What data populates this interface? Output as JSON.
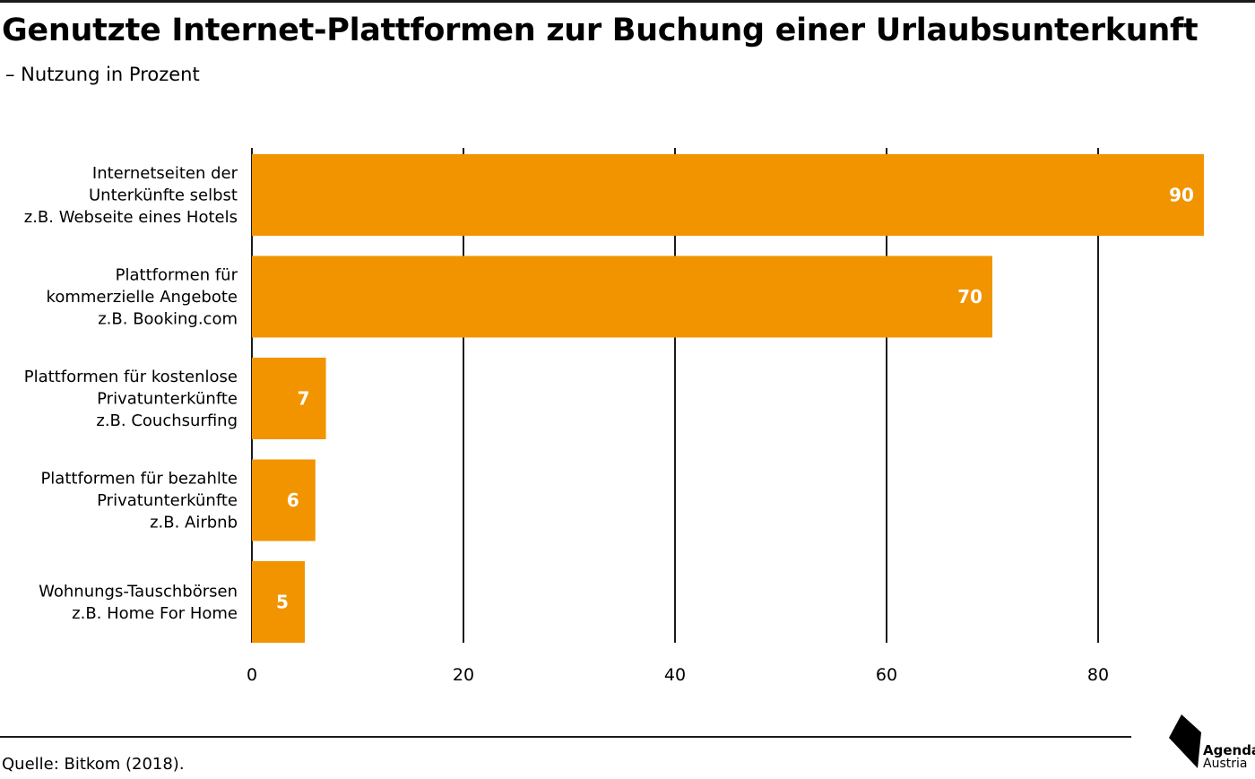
{
  "title": "Genutzte Internet-Plattformen zur Buchung einer Urlaubsunterkunft",
  "subtitle": "– Nutzung in Prozent",
  "source": "Quelle: Bitkom (2018).",
  "logo": {
    "line1": "Agenda",
    "line2": "Austria"
  },
  "colors": {
    "bar": "#F29400",
    "grid": "#1a1a1a",
    "value_label": "#ffffff"
  },
  "chart_data": {
    "type": "bar",
    "orientation": "horizontal",
    "categories": [
      [
        "Internetseiten der",
        "Unterkünfte selbst",
        "z.B. Webseite eines Hotels"
      ],
      [
        "Plattformen für",
        "kommerzielle Angebote",
        "z.B. Booking.com"
      ],
      [
        "Plattformen für kostenlose",
        "Privatunterkünfte",
        "z.B. Couchsurfing"
      ],
      [
        "Plattformen für bezahlte",
        "Privatunterkünfte",
        "z.B. Airbnb"
      ],
      [
        "Wohnungs-Tauschbörsen",
        "z.B. Home For Home"
      ]
    ],
    "values": [
      90,
      70,
      7,
      6,
      5
    ],
    "xlim": [
      0,
      90
    ],
    "xticks": [
      0,
      20,
      40,
      60,
      80
    ],
    "grid": true,
    "data_labels": true
  }
}
